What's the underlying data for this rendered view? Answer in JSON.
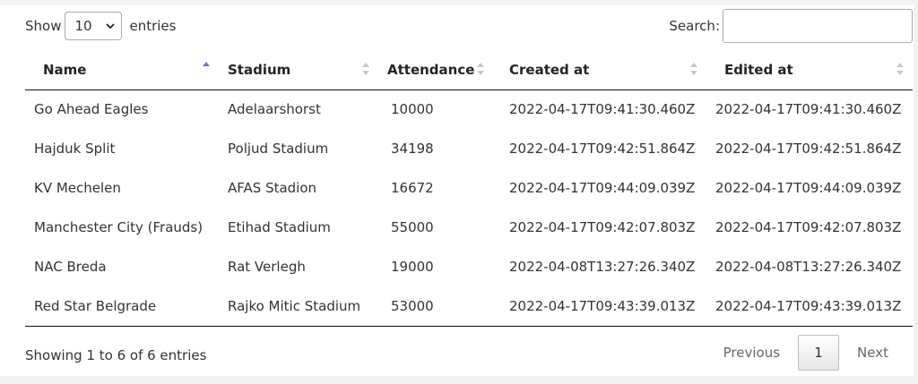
{
  "length_control": {
    "prefix": "Show",
    "selected": "10",
    "suffix": "entries"
  },
  "search": {
    "label": "Search:",
    "value": "",
    "placeholder": ""
  },
  "table": {
    "headers": [
      "Name",
      "Stadium",
      "Attendance",
      "Created at",
      "Edited at"
    ],
    "sorted_column": "Name",
    "sort_direction": "ascending",
    "rows": [
      [
        "Go Ahead Eagles",
        "Adelaarshorst",
        "10000",
        "2022-04-17T09:41:30.460Z",
        "2022-04-17T09:41:30.460Z"
      ],
      [
        "Hajduk Split",
        "Poljud Stadium",
        "34198",
        "2022-04-17T09:42:51.864Z",
        "2022-04-17T09:42:51.864Z"
      ],
      [
        "KV Mechelen",
        "AFAS Stadion",
        "16672",
        "2022-04-17T09:44:09.039Z",
        "2022-04-17T09:44:09.039Z"
      ],
      [
        "Manchester City (Frauds)",
        "Etihad Stadium",
        "55000",
        "2022-04-17T09:42:07.803Z",
        "2022-04-17T09:42:07.803Z"
      ],
      [
        "NAC Breda",
        "Rat Verlegh",
        "19000",
        "2022-04-08T13:27:26.340Z",
        "2022-04-08T13:27:26.340Z"
      ],
      [
        "Red Star Belgrade",
        "Rajko Mitic Stadium",
        "53000",
        "2022-04-17T09:43:39.013Z",
        "2022-04-17T09:43:39.013Z"
      ]
    ]
  },
  "footer": {
    "info": "Showing 1 to 6 of 6 entries"
  },
  "pagination": {
    "previous": "Previous",
    "current": "1",
    "next": "Next"
  },
  "colors": {
    "sort_active": "#6f6fd8",
    "sort_inactive": "#c8c8c8",
    "page_background": "#f3f3f3",
    "panel_background": "#ffffff"
  },
  "icons": {
    "select_arrow": "chevron-down-icon",
    "sort_asc": "sort-asc-icon",
    "sort_both": "sort-both-icon"
  }
}
